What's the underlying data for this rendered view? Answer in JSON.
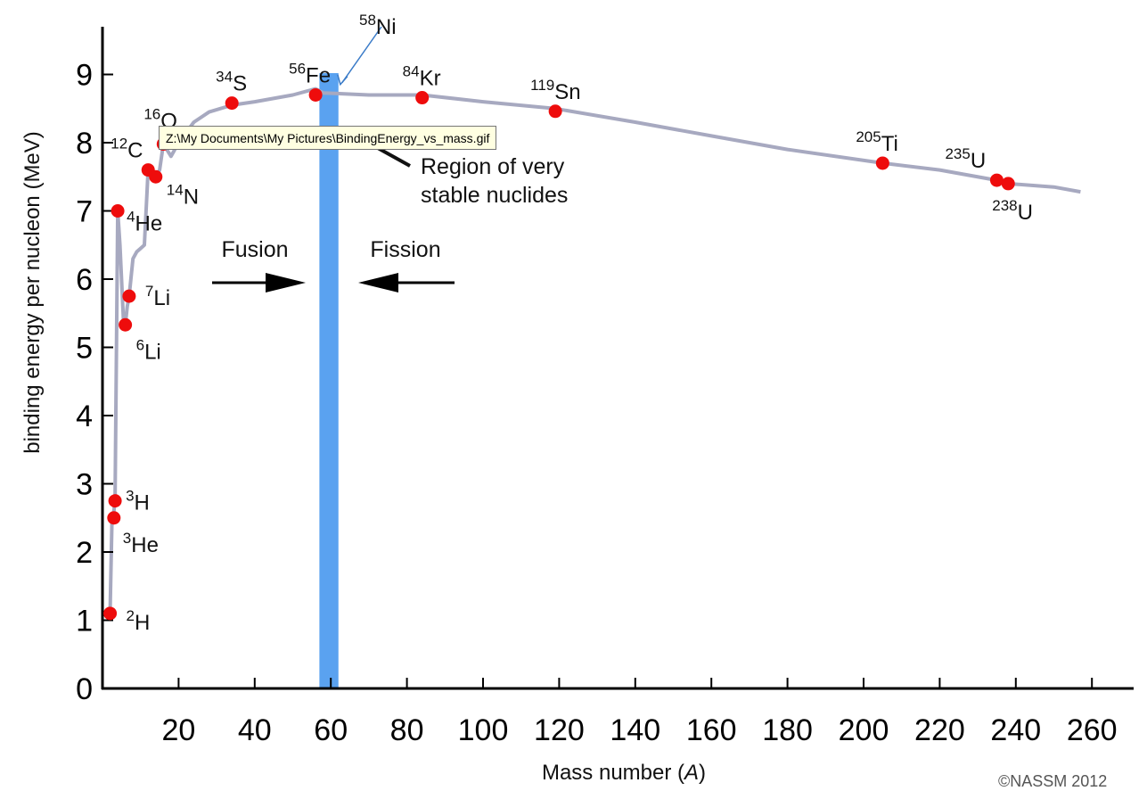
{
  "chart_data": {
    "type": "line",
    "title": "",
    "xlabel": "Mass number (A)",
    "ylabel": "binding energy per nucleon (MeV)",
    "xlim": [
      0,
      265
    ],
    "ylim": [
      0,
      9.7
    ],
    "x_ticks": [
      20,
      40,
      60,
      80,
      100,
      120,
      140,
      160,
      180,
      200,
      220,
      240,
      260
    ],
    "y_ticks": [
      0,
      1,
      2,
      3,
      4,
      5,
      6,
      7,
      8,
      9
    ],
    "grid": false,
    "curve": {
      "x": [
        2,
        2.5,
        3,
        3.3,
        4,
        4.6,
        5.5,
        6,
        6.5,
        7,
        8,
        9,
        10,
        11,
        12,
        13,
        14,
        15,
        16,
        18,
        20,
        24,
        28,
        34,
        40,
        50,
        56,
        58,
        62,
        70,
        84,
        100,
        119,
        140,
        160,
        180,
        205,
        220,
        235,
        238,
        250,
        257
      ],
      "y": [
        1.1,
        2.5,
        2.6,
        2.75,
        7.0,
        6.5,
        5.4,
        5.33,
        5.6,
        5.75,
        6.3,
        6.4,
        6.45,
        6.5,
        7.6,
        7.56,
        7.5,
        7.6,
        7.98,
        7.8,
        8.0,
        8.3,
        8.45,
        8.55,
        8.6,
        8.7,
        8.79,
        8.73,
        8.72,
        8.7,
        8.7,
        8.6,
        8.5,
        8.3,
        8.1,
        7.9,
        7.7,
        7.6,
        7.45,
        7.4,
        7.35,
        7.28
      ]
    },
    "points": [
      {
        "mass": "2",
        "el": "H",
        "x": 2,
        "y": 1.1
      },
      {
        "mass": "3",
        "el": "He",
        "x": 3,
        "y": 2.5
      },
      {
        "mass": "3",
        "el": "H",
        "x": 3.3,
        "y": 2.75
      },
      {
        "mass": "4",
        "el": "He",
        "x": 4,
        "y": 7.0
      },
      {
        "mass": "6",
        "el": "Li",
        "x": 6,
        "y": 5.33
      },
      {
        "mass": "7",
        "el": "Li",
        "x": 7,
        "y": 5.75
      },
      {
        "mass": "12",
        "el": "C",
        "x": 12,
        "y": 7.6
      },
      {
        "mass": "14",
        "el": "N",
        "x": 14,
        "y": 7.5
      },
      {
        "mass": "16",
        "el": "O",
        "x": 16,
        "y": 7.98
      },
      {
        "mass": "34",
        "el": "S",
        "x": 34,
        "y": 8.58
      },
      {
        "mass": "56",
        "el": "Fe",
        "x": 56,
        "y": 8.7
      },
      {
        "mass": "84",
        "el": "Kr",
        "x": 84,
        "y": 8.66
      },
      {
        "mass": "119",
        "el": "Sn",
        "x": 119,
        "y": 8.46
      },
      {
        "mass": "205",
        "el": "Ti",
        "x": 205,
        "y": 7.7
      },
      {
        "mass": "235",
        "el": "U",
        "x": 235,
        "y": 7.45
      },
      {
        "mass": "238",
        "el": "U",
        "x": 238,
        "y": 7.4
      }
    ],
    "ni_label": {
      "mass": "58",
      "el": "Ni"
    },
    "stable_band": {
      "x": [
        57,
        62
      ]
    },
    "annotations": {
      "stable_line1": "Region of very",
      "stable_line2": "stable nuclides",
      "fusion": "Fusion",
      "fission": "Fission"
    },
    "colors": {
      "curve": "#a7a9c0",
      "points": "#ee0c0c",
      "band": "#5aa2f0",
      "axis": "#000000"
    }
  },
  "tooltip": "Z:\\My Documents\\My Pictures\\BindingEnergy_vs_mass.gif",
  "copyright": "©NASSM 2012"
}
